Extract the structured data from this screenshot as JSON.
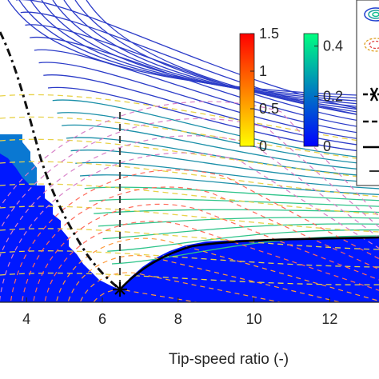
{
  "chart_data": {
    "type": "contour",
    "xlabel": "Tip-speed ratio (-)",
    "ylabel": "",
    "xlim": [
      3.3,
      13.3
    ],
    "x_ticks": [
      "4",
      "6",
      "8",
      "10",
      "12"
    ],
    "x_tick_values": [
      4,
      6,
      8,
      10,
      12
    ],
    "grid": false,
    "optimum_marker": {
      "x": 6.55,
      "symbol": "asterisk"
    },
    "vertical_dashed_line": {
      "x": 6.55
    },
    "colorbars": [
      {
        "name": "warm",
        "colormap": "autumn",
        "range": [
          0,
          1.5
        ],
        "ticks": [
          "1.5",
          "1",
          "0.5",
          "0"
        ],
        "tick_values": [
          1.5,
          1,
          0.5,
          0
        ]
      },
      {
        "name": "cool",
        "colormap": "winter",
        "range": [
          0,
          0.45
        ],
        "ticks": [
          "0.4",
          "0.2",
          "0"
        ],
        "tick_values": [
          0.4,
          0.2,
          0
        ]
      }
    ],
    "legend": {
      "placement": "top-right",
      "entries_visible": 6
    },
    "colors": {
      "filled_region": "#0014ff",
      "region_edge": "#0a78d2",
      "dashed_black": "#111111",
      "dashed_gray": "#333333"
    }
  }
}
